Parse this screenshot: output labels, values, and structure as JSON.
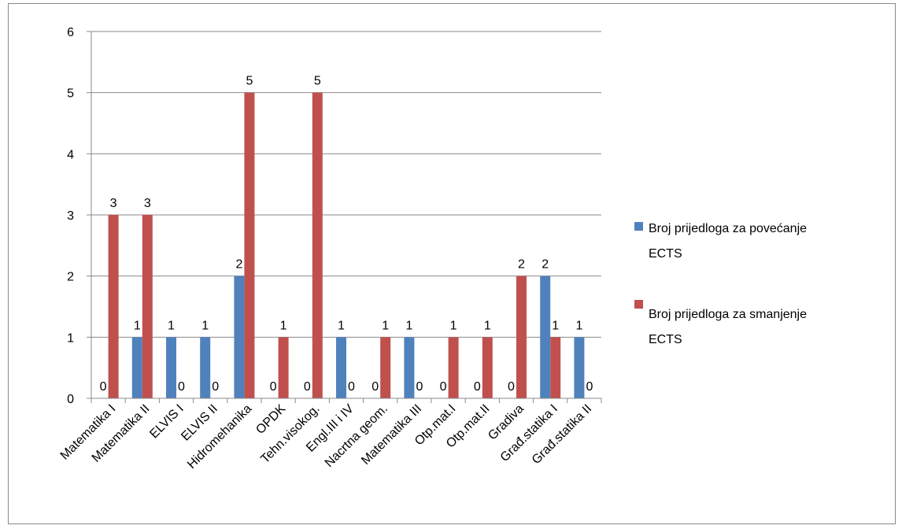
{
  "chart_data": {
    "type": "bar",
    "categories": [
      "Matematika I",
      "Matematika II",
      "ELVIS I",
      "ELVIS II",
      "Hidromehanika",
      "OPDK",
      "Tehn.visokog.",
      "Engl.III i IV",
      "Nacrtna geom.",
      "Matematika III",
      "Otp.mat.I",
      "Otp.mat.II",
      "Gradiva",
      "Građ.statika I",
      "Građ.statika II"
    ],
    "series": [
      {
        "name": "Broj prijedloga za povećanje ECTS",
        "values": [
          0,
          1,
          1,
          1,
          2,
          0,
          0,
          1,
          0,
          1,
          0,
          0,
          0,
          2,
          1
        ],
        "color": "#4f81bd"
      },
      {
        "name": "Broj prijedloga za smanjenje ECTS",
        "values": [
          3,
          3,
          0,
          0,
          5,
          1,
          5,
          0,
          1,
          0,
          1,
          1,
          2,
          1,
          0
        ],
        "color": "#c0504d"
      }
    ],
    "data_labels": {
      "series_0": [
        "0",
        "1",
        "1",
        "1",
        "2",
        "0",
        "0",
        "1",
        "0",
        "1",
        "0",
        "0",
        "0",
        "2",
        "1"
      ],
      "series_1": [
        "3",
        "3",
        "0",
        "0",
        "5",
        "1",
        "5",
        "0",
        "1",
        "0",
        "1",
        "1",
        "2",
        "1",
        "0"
      ]
    },
    "y_ticks": [
      "0",
      "1",
      "2",
      "3",
      "4",
      "5",
      "6"
    ],
    "ylim": [
      0,
      6
    ],
    "grid": true,
    "legend": {
      "position": "right",
      "entries": [
        {
          "line1": "Broj prijedloga za povećanje",
          "line2": "ECTS",
          "color": "#4f81bd"
        },
        {
          "line1": "Broj prijedloga za smanjenje",
          "line2": "ECTS",
          "color": "#c0504d"
        }
      ]
    },
    "colors": {
      "grid": "#898989",
      "axis": "#898989",
      "frame": "#898989"
    }
  }
}
